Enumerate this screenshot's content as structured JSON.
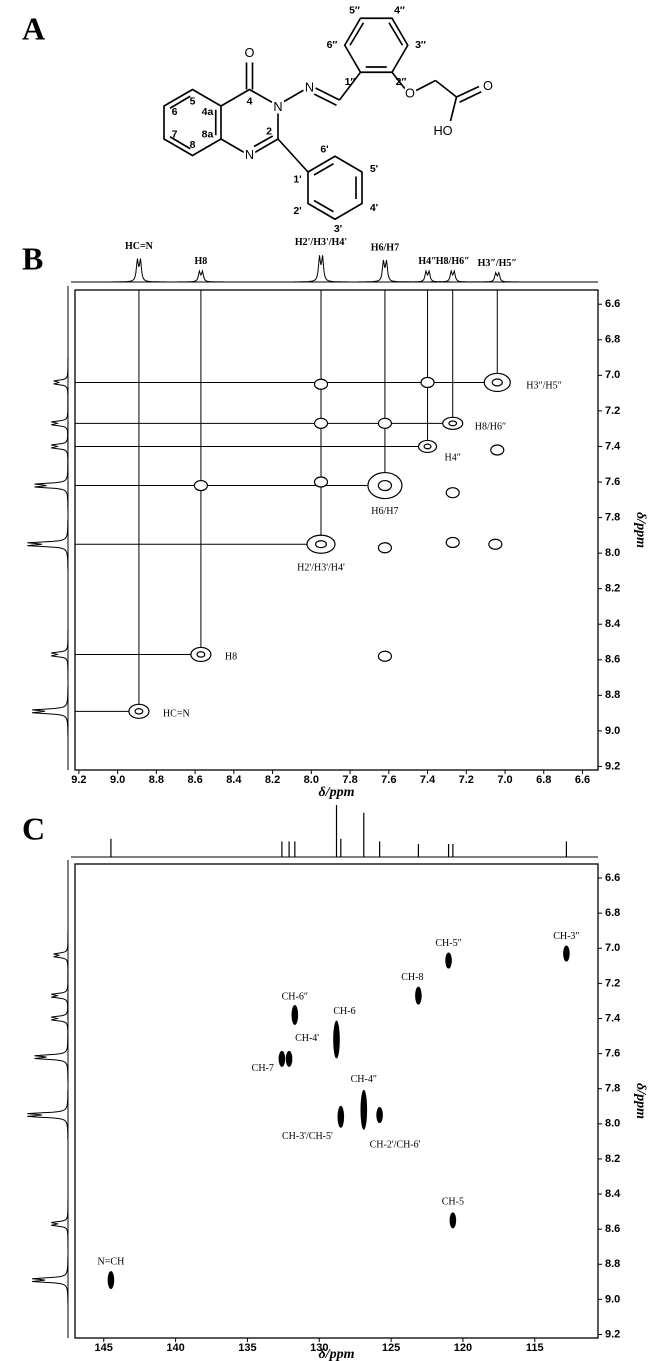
{
  "panel_a": {
    "letter": "A",
    "atom_labels": [
      "O",
      "N",
      "N",
      "N",
      "O",
      "O",
      "HO"
    ],
    "numbering": [
      "5",
      "4a",
      "4",
      "6",
      "7",
      "8",
      "8a",
      "2",
      "1'",
      "6'",
      "5'",
      "4'",
      "3'",
      "2'",
      "1″",
      "6″",
      "5″",
      "4″",
      "3″",
      "2″"
    ]
  },
  "panel_b": {
    "letter": "B",
    "type": "cosy",
    "x_label": "δ/ppm",
    "y_label": "δ/ppm",
    "xlim": [
      9.22,
      6.52
    ],
    "ylim": [
      6.52,
      9.22
    ],
    "xticks": [
      9.2,
      {
        "value": 9,
        "label": "9.0"
      },
      8.8,
      8.6,
      8.4,
      8.2,
      {
        "value": 8,
        "label": "8.0"
      },
      7.8,
      7.6,
      7.4,
      7.2,
      {
        "value": 7,
        "label": "7.0"
      },
      6.8,
      6.6
    ],
    "yticks": [
      6.6,
      6.8,
      {
        "value": 7,
        "label": "7.0"
      },
      7.2,
      7.4,
      7.6,
      7.8,
      {
        "value": 8,
        "label": "8.0"
      },
      8.2,
      8.4,
      8.6,
      8.8,
      {
        "value": 9,
        "label": "9.0"
      },
      9.2
    ],
    "signals": [
      {
        "ppm": 8.89,
        "intensity": 0.75,
        "label": "HC=N"
      },
      {
        "ppm": 8.57,
        "intensity": 0.35,
        "label": "H8"
      },
      {
        "ppm": 7.95,
        "intensity": 0.85,
        "label": "H2'/H3'/H4'"
      },
      {
        "ppm": 7.62,
        "intensity": 0.7,
        "label": "H6/H7"
      },
      {
        "ppm": 7.4,
        "intensity": 0.35,
        "label": "H4″"
      },
      {
        "ppm": 7.27,
        "intensity": 0.35,
        "label": "H8/H6″"
      },
      {
        "ppm": 7.04,
        "intensity": 0.3,
        "label": "H3″/H5″"
      }
    ],
    "cross_peaks": [
      {
        "x": 7.95,
        "y": 7.05
      },
      {
        "x": 7.4,
        "y": 7.04
      },
      {
        "x": 7.95,
        "y": 7.27
      },
      {
        "x": 7.62,
        "y": 7.27
      },
      {
        "x": 7.04,
        "y": 7.42
      },
      {
        "x": 8.57,
        "y": 7.62
      },
      {
        "x": 7.95,
        "y": 7.6
      },
      {
        "x": 7.27,
        "y": 7.66
      },
      {
        "x": 7.62,
        "y": 7.97
      },
      {
        "x": 7.27,
        "y": 7.94
      },
      {
        "x": 7.05,
        "y": 7.95
      },
      {
        "x": 7.62,
        "y": 8.58
      }
    ]
  },
  "panel_c": {
    "letter": "C",
    "type": "hsqc",
    "x_label": "δ/ppm",
    "y_label": "δ/ppm",
    "xlim": [
      147,
      110.6
    ],
    "ylim": [
      6.52,
      9.22
    ],
    "xticks": [
      145,
      140,
      135,
      130,
      125,
      120,
      115
    ],
    "yticks": [
      6.6,
      6.8,
      {
        "value": 7,
        "label": "7.0"
      },
      7.2,
      7.4,
      7.6,
      7.8,
      {
        "value": 8,
        "label": "8.0"
      },
      8.2,
      8.4,
      8.6,
      8.8,
      {
        "value": 9,
        "label": "9.0"
      },
      9.2
    ],
    "carbon_signals": [
      {
        "ppm": 144.5,
        "intensity": 0.35
      },
      {
        "ppm": 132.6,
        "intensity": 0.3
      },
      {
        "ppm": 132.1,
        "intensity": 0.3
      },
      {
        "ppm": 131.7,
        "intensity": 0.3
      },
      {
        "ppm": 128.8,
        "intensity": 1.0
      },
      {
        "ppm": 128.5,
        "intensity": 0.35
      },
      {
        "ppm": 126.9,
        "intensity": 0.85
      },
      {
        "ppm": 125.8,
        "intensity": 0.3
      },
      {
        "ppm": 123.1,
        "intensity": 0.25
      },
      {
        "ppm": 121.0,
        "intensity": 0.25
      },
      {
        "ppm": 120.7,
        "intensity": 0.25
      },
      {
        "ppm": 112.8,
        "intensity": 0.3
      }
    ],
    "peaks": [
      {
        "x": 112.8,
        "y": 7.03,
        "label": "CH-3″"
      },
      {
        "x": 121.0,
        "y": 7.07,
        "label": "CH-5″"
      },
      {
        "x": 123.1,
        "y": 7.27,
        "label": "CH-8"
      },
      {
        "x": 131.7,
        "y": 7.38,
        "label": "CH-6″"
      },
      {
        "x": 128.8,
        "y": 7.52,
        "label": "CH-6"
      },
      {
        "x": 132.1,
        "y": 7.63,
        "label": "CH-4'"
      },
      {
        "x": 132.6,
        "y": 7.63,
        "label": "CH-7"
      },
      {
        "x": 126.9,
        "y": 7.92,
        "label": "CH-4″"
      },
      {
        "x": 125.8,
        "y": 7.95,
        "label": "CH-2'/CH-6'"
      },
      {
        "x": 128.5,
        "y": 7.96,
        "label": "CH-3'/CH-5'"
      },
      {
        "x": 120.7,
        "y": 8.55,
        "label": "CH-5"
      },
      {
        "x": 144.5,
        "y": 8.89,
        "label": "N=CH"
      }
    ]
  }
}
